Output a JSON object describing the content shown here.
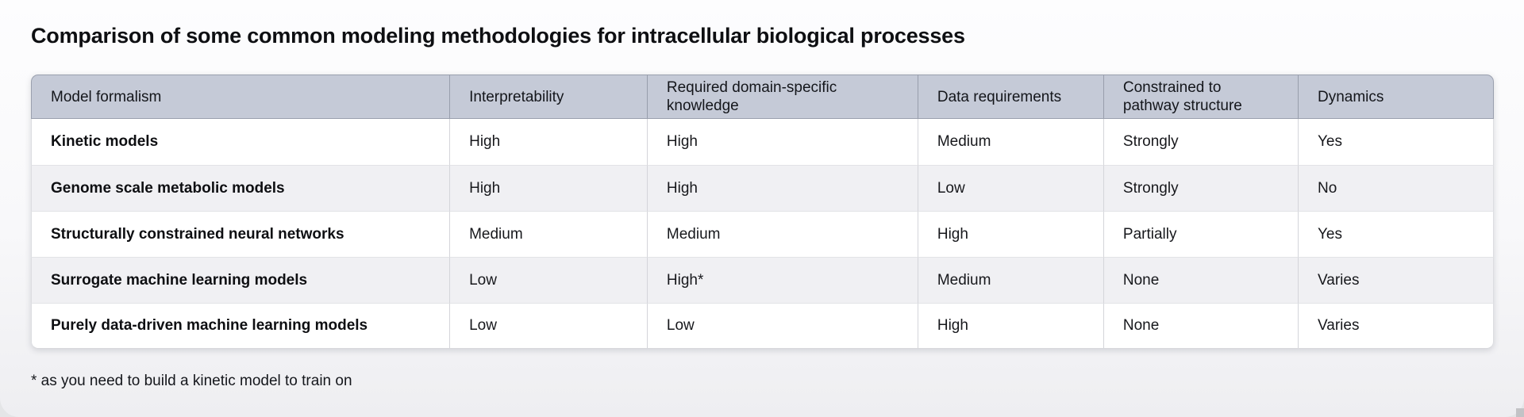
{
  "page": {
    "title": "Comparison of some common modeling methodologies for intracellular biological processes",
    "footnote": "* as you need to build a kinetic model to train on"
  },
  "colors": {
    "header_bg": "#c5cad7",
    "row_bg": "#ffffff",
    "row_alt_bg": "#f0f0f3",
    "header_border": "#9aa0ae",
    "body_border": "#d4d5da",
    "text": "#17181c"
  },
  "table": {
    "columns": [
      "Model formalism",
      "Interpretability",
      "Required domain-specific knowledge",
      "Data requirements",
      "Constrained to pathway structure",
      "Dynamics"
    ],
    "rows": [
      {
        "model": "Kinetic models",
        "interpretability": "High",
        "knowledge": "High",
        "data": "Medium",
        "pathway": "Strongly",
        "dynamics": "Yes"
      },
      {
        "model": "Genome scale metabolic models",
        "interpretability": "High",
        "knowledge": "High",
        "data": "Low",
        "pathway": "Strongly",
        "dynamics": "No"
      },
      {
        "model": "Structurally constrained neural networks",
        "interpretability": "Medium",
        "knowledge": "Medium",
        "data": "High",
        "pathway": "Partially",
        "dynamics": "Yes"
      },
      {
        "model": "Surrogate machine learning models",
        "interpretability": "Low",
        "knowledge": "High*",
        "data": "Medium",
        "pathway": "None",
        "dynamics": "Varies"
      },
      {
        "model": "Purely data-driven machine learning models",
        "interpretability": "Low",
        "knowledge": "Low",
        "data": "High",
        "pathway": "None",
        "dynamics": "Varies"
      }
    ]
  }
}
